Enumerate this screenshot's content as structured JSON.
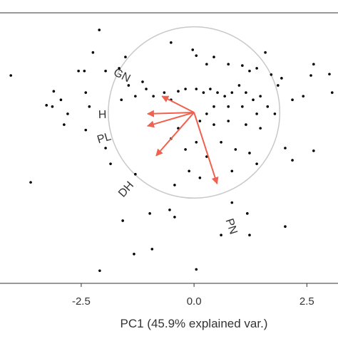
{
  "chart_data": {
    "type": "biplot",
    "x_label": "PC1 (45.9% explained var.)",
    "xlim": [
      -4.3,
      3.19
    ],
    "ylim": [
      -3.79,
      2.21
    ],
    "xticks": [
      -2.5,
      {
        "value": 0,
        "label": "0.0"
      },
      2.5
    ],
    "point_color": "#000000",
    "arrow_color": "#f0614f",
    "circle_color": "#c8c8c8",
    "circle_radius": 1.9,
    "points": {
      "x": [
        -2.1,
        -0.51,
        -1.52,
        -2.24,
        -2.56,
        -2.43,
        -1.96,
        -1.66,
        -4.06,
        -0.03,
        0.05,
        0.44,
        0.28,
        0.76,
        1.07,
        1.23,
        1.39,
        1.58,
        1.71,
        1.86,
        2.65,
        2.59,
        3.0,
        3.06,
        2.42,
        2.18,
        1.94,
        -3.11,
        -2.95,
        -3.27,
        -3.14,
        -2.8,
        -2.88,
        -2.4,
        -2.32,
        -2.4,
        -1.45,
        -1.61,
        -1.3,
        -1.14,
        -1.06,
        -0.9,
        -3.62,
        -1.96,
        -1.85,
        -1.3,
        -0.66,
        -0.51,
        -0.35,
        -0.19,
        0.05,
        0.21,
        0.36,
        0.52,
        0.68,
        0.84,
        1.0,
        1.15,
        1.31,
        1.47,
        1.63,
        1.79,
        1.39,
        1.07,
        0.76,
        0.44,
        0.28,
        0.13,
        0.44,
        0.76,
        1.15,
        1.47,
        -0.35,
        -0.51,
        -0.19,
        0.05,
        0.28,
        0.6,
        0.92,
        1.23,
        0.84,
        -0.11,
        -0.43,
        0.13,
        2.02,
        2.18,
        2.65,
        1.39,
        -0.98,
        -0.54,
        -0.43,
        -1.58,
        0.84,
        1.18,
        1.23,
        2.02,
        -0.93,
        -1.33,
        -2.09,
        0.05,
        0.6
      ],
      "y": [
        1.83,
        1.55,
        1.23,
        1.33,
        0.92,
        0.92,
        0.92,
        0.98,
        0.82,
        1.39,
        1.26,
        1.23,
        1.07,
        1.07,
        1.04,
        0.92,
        0.98,
        1.33,
        0.84,
        0.6,
        1.07,
        0.82,
        0.85,
        0.44,
        0.36,
        0.28,
        0.76,
        0.47,
        0.28,
        0.16,
        0.13,
        -0.03,
        -0.27,
        -0.39,
        0.13,
        0.44,
        0.6,
        0.28,
        0.36,
        0.68,
        0.52,
        0.36,
        -1.55,
        -0.79,
        -1.14,
        -1.37,
        0.44,
        0.28,
        0.47,
        0.52,
        0.52,
        0.44,
        0.52,
        0.44,
        0.36,
        0.44,
        0.6,
        0.44,
        0.28,
        0.36,
        0.13,
        -0.03,
        -0.03,
        0.13,
        0.13,
        0.13,
        -0.03,
        -0.19,
        -0.27,
        -0.19,
        -0.27,
        -0.35,
        -0.35,
        -0.58,
        -0.82,
        -0.66,
        -0.98,
        -0.66,
        -0.82,
        -0.9,
        -1.3,
        -1.3,
        -1.61,
        -1.45,
        -0.79,
        -1.06,
        -0.85,
        -1.14,
        -2.24,
        -2.16,
        -2.32,
        -2.4,
        -2.0,
        -2.24,
        -2.72,
        -2.53,
        -3.03,
        -3.14,
        -3.51,
        -3.48,
        -2.72
      ]
    },
    "arrows": {
      "names": [
        "GN",
        "H",
        "PL",
        "DH",
        "PN"
      ],
      "x": [
        -0.71,
        -1.03,
        -1.03,
        -0.84,
        0.51
      ],
      "y": [
        0.36,
        -0.03,
        -0.3,
        -0.96,
        -1.58
      ]
    }
  }
}
